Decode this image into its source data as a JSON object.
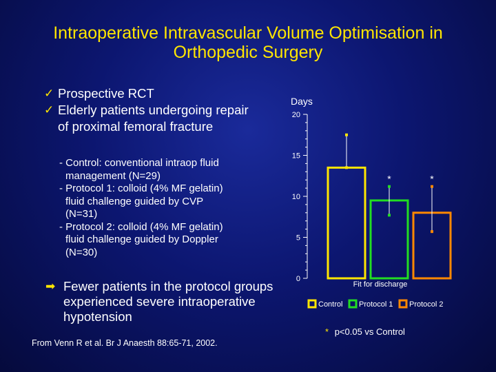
{
  "title": {
    "line1": "Intraoperative Intravascular Volume Optimisation in",
    "line2": "Orthopedic Surgery"
  },
  "bullets": [
    {
      "text": "Prospective RCT"
    },
    {
      "text": "Elderly patients undergoing repair",
      "cont": "of proximal femoral fracture"
    }
  ],
  "groups": [
    {
      "line1": "- Control: conventional intraop fluid",
      "line2": "management (N=29)"
    },
    {
      "line1": "- Protocol 1: colloid (4% MF gelatin)",
      "line2": "fluid challenge guided by CVP",
      "line3": "(N=31)"
    },
    {
      "line1": "- Protocol 2: colloid (4% MF gelatin)",
      "line2": "fluid challenge guided by Doppler",
      "line3": "(N=30)"
    }
  ],
  "conclusion": {
    "line1": "Fewer patients in the protocol groups",
    "line2": "experienced severe intraoperative",
    "line3": "hypotension"
  },
  "reference": "From Venn R et al. Br J Anaesth 88:65-71, 2002.",
  "colors": {
    "title": "#ffe600",
    "control": "#ffe600",
    "protocol1": "#22dd22",
    "protocol2": "#ff8800",
    "significance": "#ffe600"
  },
  "chart_data": {
    "type": "bar",
    "ylabel": "Days",
    "ylim": [
      0,
      20
    ],
    "yticks": [
      "0",
      "5",
      "10",
      "15",
      "20"
    ],
    "category": "Fit for discharge",
    "series": [
      {
        "name": "Control",
        "value": 13.5,
        "err_low": 13.5,
        "err_high": 17.5,
        "significant": false
      },
      {
        "name": "Protocol 1",
        "value": 9.5,
        "err_low": 7.7,
        "err_high": 11.2,
        "significant": true
      },
      {
        "name": "Protocol 2",
        "value": 8,
        "err_low": 5.7,
        "err_high": 11.2,
        "significant": true
      }
    ],
    "significance_marker": "*",
    "footnote_star": "*",
    "footnote_text": "p<0.05 vs Control"
  }
}
